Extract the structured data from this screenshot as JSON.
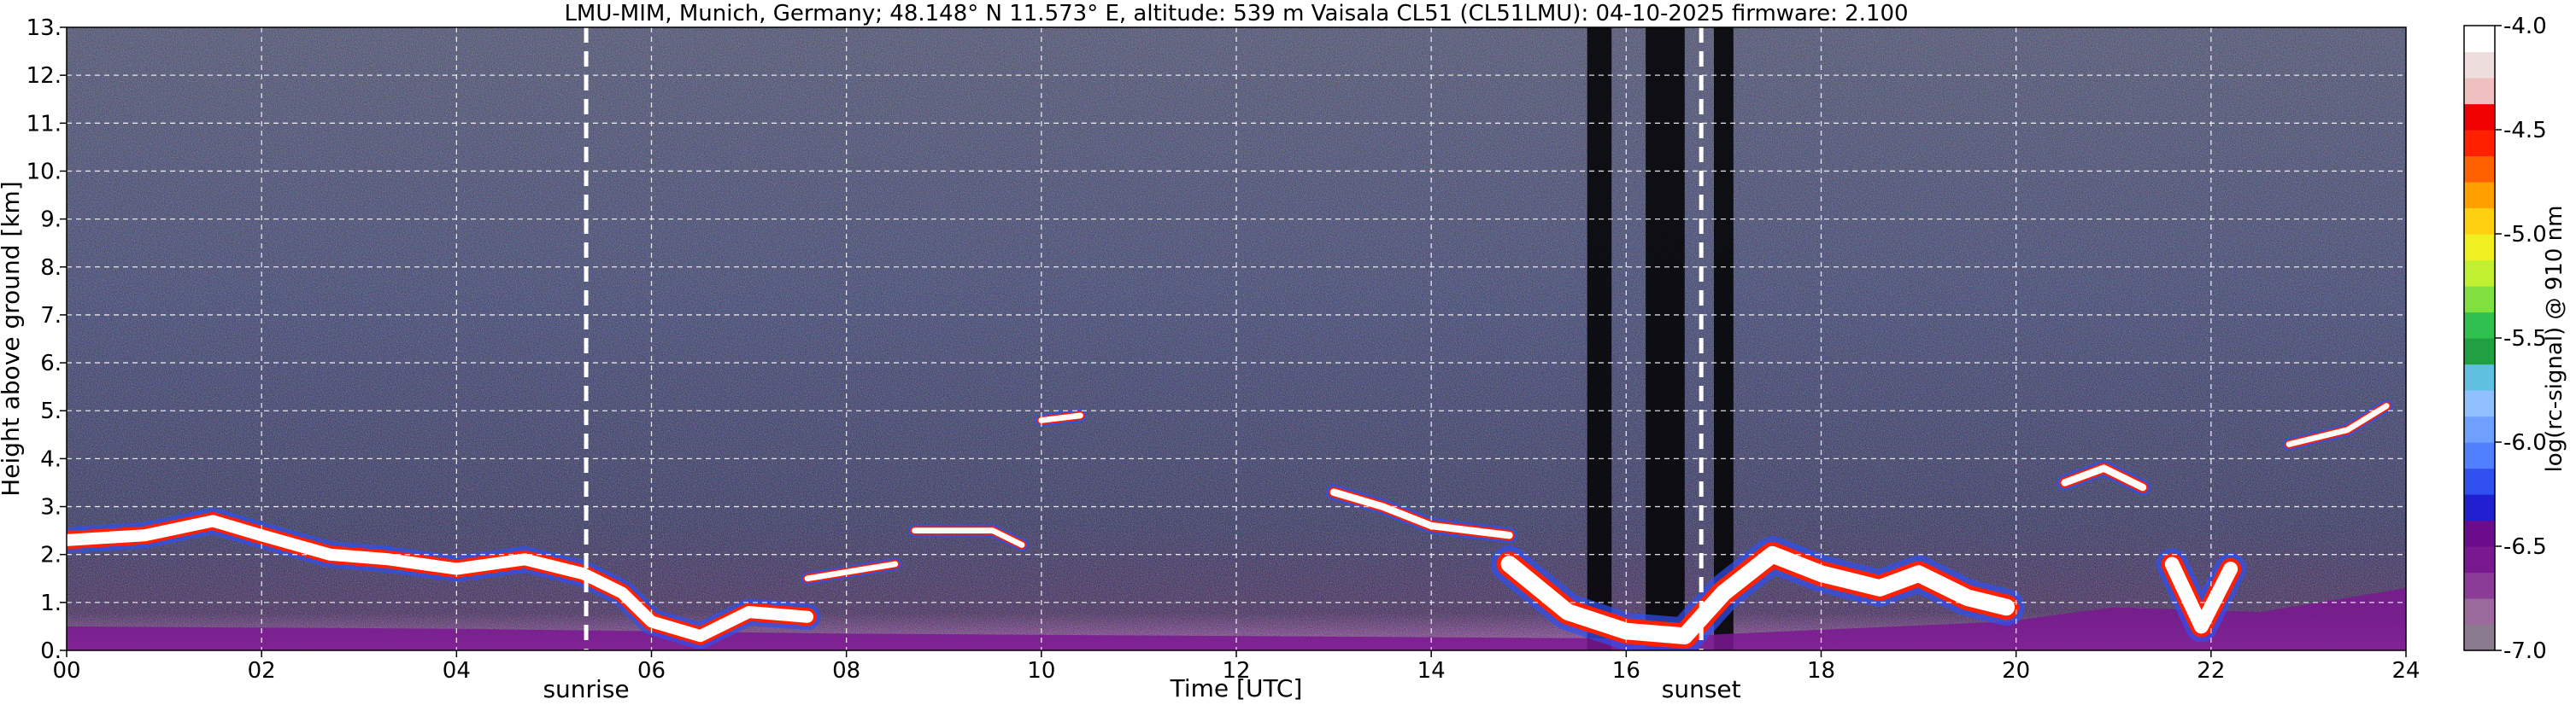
{
  "chart_data": {
    "type": "heatmap",
    "title": "LMU-MIM, Munich, Germany; 48.148° N 11.573° E, altitude: 539 m    Vaisala CL51 (CL51LMU): 04-10-2025    firmware: 2.100",
    "xlabel": "Time [UTC]",
    "ylabel": "Height above ground [km]",
    "xlim": [
      0,
      24
    ],
    "ylim": [
      0,
      13
    ],
    "x_ticks": [
      "00",
      "02",
      "04",
      "06",
      "08",
      "10",
      "12",
      "14",
      "16",
      "18",
      "20",
      "22",
      "24"
    ],
    "y_ticks": [
      "0.",
      "1.",
      "2.",
      "3.",
      "4.",
      "5.",
      "6.",
      "7.",
      "8.",
      "9.",
      "10.",
      "11.",
      "12.",
      "13."
    ],
    "grid": true,
    "colorbar": {
      "label": "log(rc-signal) @ 910 nm",
      "range": [
        -7.0,
        -4.0
      ],
      "ticks": [
        "-7.0",
        "-6.5",
        "-6.0",
        "-5.5",
        "-5.0",
        "-4.5",
        "-4.0"
      ],
      "colors": [
        "#8a7a8e",
        "#9a6a9c",
        "#8a3c96",
        "#7a1890",
        "#6a0c8c",
        "#2020d0",
        "#3050f0",
        "#5080ff",
        "#70a0ff",
        "#90c0ff",
        "#60c0e0",
        "#20a040",
        "#30c050",
        "#80e040",
        "#c0f030",
        "#f0f020",
        "#ffd010",
        "#ffa000",
        "#ff6000",
        "#ff2000",
        "#f00000",
        "#f0c0c0",
        "#eedddd",
        "#ffffff"
      ]
    },
    "events": [
      {
        "label": "sunrise",
        "time": 5.33
      },
      {
        "label": "sunset",
        "time": 16.77
      }
    ],
    "cloud_layers": [
      {
        "name": "morning-layer",
        "points": [
          [
            0.0,
            2.3
          ],
          [
            0.8,
            2.4
          ],
          [
            1.5,
            2.7
          ],
          [
            2.0,
            2.4
          ],
          [
            2.7,
            2.0
          ],
          [
            3.3,
            1.9
          ],
          [
            4.0,
            1.7
          ],
          [
            4.7,
            1.9
          ],
          [
            5.3,
            1.6
          ],
          [
            5.7,
            1.2
          ],
          [
            6.0,
            0.6
          ],
          [
            6.5,
            0.3
          ],
          [
            7.0,
            0.8
          ],
          [
            7.6,
            0.7
          ]
        ],
        "thickness": 0.25
      },
      {
        "name": "mid-patches-a",
        "points": [
          [
            7.6,
            1.5
          ],
          [
            8.5,
            1.8
          ]
        ],
        "thickness": 0.12
      },
      {
        "name": "mid-patches-b",
        "points": [
          [
            8.7,
            2.5
          ],
          [
            9.5,
            2.5
          ],
          [
            9.8,
            2.2
          ]
        ],
        "thickness": 0.12
      },
      {
        "name": "mid-patches-c",
        "points": [
          [
            10.0,
            4.8
          ],
          [
            10.4,
            4.9
          ]
        ],
        "thickness": 0.12
      },
      {
        "name": "mid-patches-d",
        "points": [
          [
            13.0,
            3.3
          ],
          [
            13.5,
            3.0
          ],
          [
            14.0,
            2.6
          ],
          [
            14.8,
            2.4
          ]
        ],
        "thickness": 0.15
      },
      {
        "name": "afternoon-low",
        "points": [
          [
            14.8,
            1.8
          ],
          [
            15.4,
            0.8
          ],
          [
            16.0,
            0.4
          ],
          [
            16.6,
            0.3
          ],
          [
            17.0,
            1.2
          ],
          [
            17.5,
            2.0
          ],
          [
            18.0,
            1.6
          ],
          [
            18.6,
            1.3
          ],
          [
            19.0,
            1.6
          ],
          [
            19.5,
            1.1
          ],
          [
            19.9,
            0.9
          ]
        ],
        "thickness": 0.35
      },
      {
        "name": "evening-mid",
        "points": [
          [
            20.5,
            3.5
          ],
          [
            20.9,
            3.8
          ],
          [
            21.3,
            3.4
          ]
        ],
        "thickness": 0.15
      },
      {
        "name": "evening-low",
        "points": [
          [
            21.6,
            1.8
          ],
          [
            21.9,
            0.5
          ],
          [
            22.2,
            1.7
          ]
        ],
        "thickness": 0.3
      },
      {
        "name": "late-aloft",
        "points": [
          [
            22.8,
            4.3
          ],
          [
            23.4,
            4.6
          ],
          [
            23.8,
            5.1
          ]
        ],
        "thickness": 0.12
      }
    ],
    "aerosol_layer": {
      "points": [
        [
          0,
          0.5
        ],
        [
          4,
          0.45
        ],
        [
          8,
          0.35
        ],
        [
          12,
          0.3
        ],
        [
          16,
          0.25
        ],
        [
          19.9,
          0.6
        ],
        [
          21,
          0.9
        ],
        [
          22.5,
          0.8
        ],
        [
          24,
          1.3
        ]
      ]
    },
    "dark_columns": [
      [
        15.6,
        15.85
      ],
      [
        16.2,
        16.6
      ],
      [
        16.9,
        17.1
      ]
    ]
  }
}
